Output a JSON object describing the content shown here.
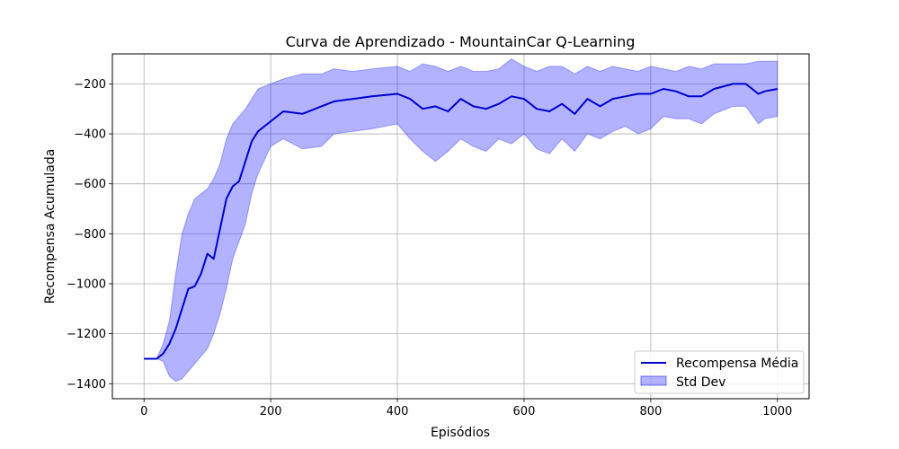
{
  "chart_data": {
    "type": "line",
    "title": "Curva de Aprendizado - MountainCar Q-Learning",
    "xlabel": "Episódios",
    "ylabel": "Recompensa Acumulada",
    "xlim": [
      -50,
      1050
    ],
    "ylim": [
      -1460,
      -80
    ],
    "xticks": [
      0,
      200,
      400,
      600,
      800,
      1000
    ],
    "yticks": [
      -1400,
      -1200,
      -1000,
      -800,
      -600,
      -400,
      -200
    ],
    "grid": true,
    "legend_position": "bottom-right",
    "series": [
      {
        "name": "Recompensa Média",
        "kind": "line",
        "color": "#0000cd",
        "x": [
          0,
          20,
          30,
          40,
          50,
          60,
          70,
          80,
          90,
          100,
          110,
          120,
          130,
          140,
          150,
          160,
          170,
          180,
          200,
          220,
          250,
          280,
          300,
          330,
          360,
          400,
          420,
          440,
          460,
          480,
          500,
          520,
          540,
          560,
          580,
          600,
          620,
          640,
          660,
          680,
          700,
          720,
          740,
          760,
          780,
          800,
          820,
          840,
          860,
          880,
          900,
          930,
          950,
          970,
          980,
          1000
        ],
        "values": [
          -1300,
          -1300,
          -1280,
          -1240,
          -1180,
          -1100,
          -1020,
          -1010,
          -960,
          -880,
          -900,
          -780,
          -660,
          -610,
          -590,
          -510,
          -430,
          -390,
          -350,
          -310,
          -320,
          -290,
          -270,
          -260,
          -250,
          -240,
          -260,
          -300,
          -290,
          -310,
          -260,
          -290,
          -300,
          -280,
          -250,
          -260,
          -300,
          -310,
          -280,
          -320,
          -260,
          -290,
          -260,
          -250,
          -240,
          -240,
          -220,
          -230,
          -250,
          -250,
          -220,
          -200,
          -200,
          -240,
          -230,
          -220
        ]
      },
      {
        "name": "Std Dev",
        "kind": "band",
        "color": "#0000ff",
        "opacity": 0.3,
        "x": [
          0,
          20,
          30,
          40,
          50,
          60,
          70,
          80,
          90,
          100,
          110,
          120,
          130,
          140,
          150,
          160,
          170,
          180,
          200,
          220,
          250,
          280,
          300,
          330,
          360,
          400,
          420,
          440,
          460,
          480,
          500,
          520,
          540,
          560,
          580,
          600,
          620,
          640,
          660,
          680,
          700,
          720,
          740,
          760,
          780,
          800,
          820,
          840,
          860,
          880,
          900,
          930,
          950,
          970,
          980,
          1000
        ],
        "upper": [
          -1300,
          -1300,
          -1240,
          -1150,
          -960,
          -800,
          -720,
          -660,
          -640,
          -620,
          -580,
          -520,
          -420,
          -360,
          -330,
          -300,
          -260,
          -220,
          -200,
          -180,
          -160,
          -160,
          -140,
          -150,
          -140,
          -130,
          -150,
          -120,
          -130,
          -150,
          -130,
          -150,
          -150,
          -140,
          -100,
          -130,
          -150,
          -130,
          -130,
          -160,
          -130,
          -150,
          -130,
          -140,
          -150,
          -130,
          -140,
          -150,
          -130,
          -140,
          -120,
          -120,
          -120,
          -110,
          -110,
          -110
        ],
        "lower": [
          -1300,
          -1300,
          -1310,
          -1370,
          -1390,
          -1380,
          -1350,
          -1320,
          -1290,
          -1260,
          -1200,
          -1120,
          -1020,
          -900,
          -830,
          -760,
          -640,
          -560,
          -450,
          -420,
          -460,
          -450,
          -400,
          -390,
          -380,
          -360,
          -420,
          -470,
          -510,
          -470,
          -420,
          -450,
          -470,
          -420,
          -440,
          -400,
          -460,
          -480,
          -420,
          -470,
          -400,
          -420,
          -390,
          -370,
          -400,
          -380,
          -330,
          -340,
          -340,
          -360,
          -320,
          -290,
          -290,
          -360,
          -340,
          -330
        ]
      }
    ]
  }
}
